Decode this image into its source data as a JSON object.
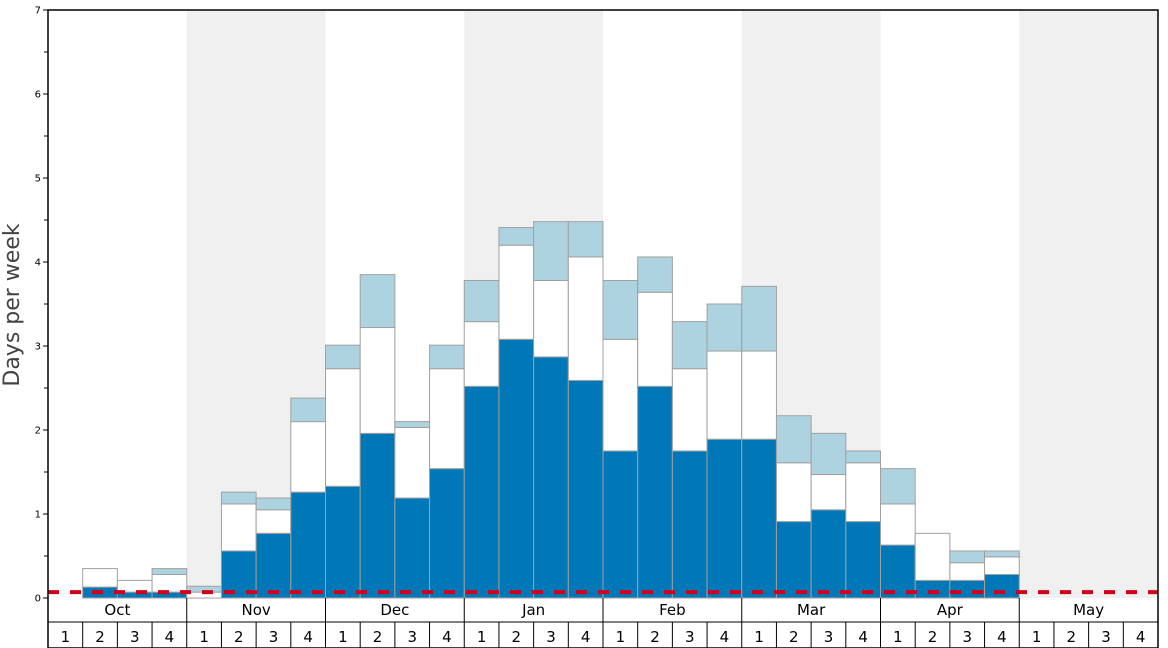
{
  "chart_data": {
    "type": "bar",
    "stacked": true,
    "ylabel": "Days per week",
    "ylim": [
      0,
      7
    ],
    "ytick_labels": [
      "0",
      "1",
      "2",
      "3",
      "4",
      "5",
      "6",
      "7"
    ],
    "months": [
      "Oct",
      "Nov",
      "Dec",
      "Jan",
      "Feb",
      "Mar",
      "Apr",
      "May"
    ],
    "weeks": [
      "1",
      "2",
      "3",
      "4"
    ],
    "shaded_months": [
      "Nov",
      "Jan",
      "Mar",
      "May"
    ],
    "grid": false,
    "legend": "none",
    "reference_line": {
      "value": 0.07,
      "style": "dashed",
      "color": "#d0021b"
    },
    "colors": {
      "level_1": "#0077b6",
      "level_2": "#ffffff",
      "level_3": "#aed3e0",
      "bar_stroke": "#a0a0a0",
      "band": "#f0f0f0"
    },
    "series": [
      {
        "level": 1,
        "values": [
          0,
          0.13,
          0.07,
          0.07,
          0,
          0.56,
          0.77,
          1.26,
          1.33,
          1.96,
          1.19,
          1.54,
          2.52,
          3.08,
          2.87,
          2.59,
          1.75,
          2.52,
          1.75,
          1.89,
          1.89,
          0.91,
          1.05,
          0.91,
          0.63,
          0.21,
          0.21,
          0.28,
          0,
          0,
          0,
          0
        ]
      },
      {
        "level": 2,
        "values": [
          0,
          0.22,
          0.14,
          0.21,
          0.07,
          0.56,
          0.28,
          0.84,
          1.4,
          1.26,
          0.84,
          1.19,
          0.77,
          1.12,
          0.91,
          1.47,
          1.33,
          1.12,
          0.98,
          1.05,
          1.05,
          0.7,
          0.42,
          0.7,
          0.49,
          0.56,
          0.21,
          0.21,
          0,
          0,
          0,
          0
        ]
      },
      {
        "level": 3,
        "values": [
          0,
          0,
          0,
          0.07,
          0.07,
          0.14,
          0.14,
          0.28,
          0.28,
          0.63,
          0.07,
          0.28,
          0.49,
          0.21,
          0.7,
          0.42,
          0.7,
          0.42,
          0.56,
          0.56,
          0.77,
          0.56,
          0.49,
          0.14,
          0.42,
          0,
          0.14,
          0.07,
          0,
          0,
          0,
          0
        ]
      }
    ]
  }
}
